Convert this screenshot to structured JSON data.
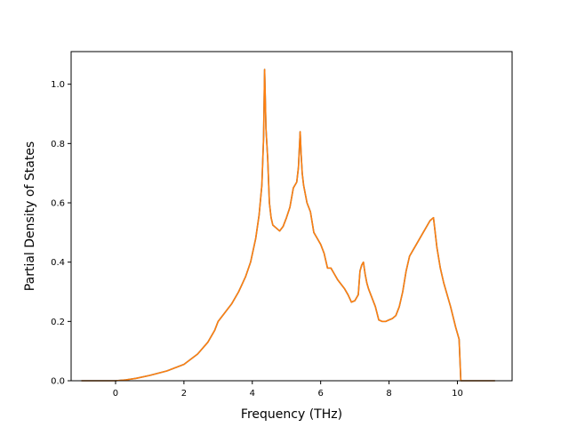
{
  "chart_data": {
    "type": "line",
    "title": "",
    "xlabel": "Frequency (THz)",
    "ylabel": "Partial Density of States",
    "xlim": [
      -1.3,
      11.6
    ],
    "ylim": [
      0.0,
      1.11
    ],
    "xticks": [
      0,
      2,
      4,
      6,
      8,
      10
    ],
    "yticks": [
      0.0,
      0.2,
      0.4,
      0.6,
      0.8,
      1.0
    ],
    "xtick_labels": [
      "0",
      "2",
      "4",
      "6",
      "8",
      "10"
    ],
    "ytick_labels": [
      "0.0",
      "0.2",
      "0.4",
      "0.6",
      "0.8",
      "1.0"
    ],
    "grid": false,
    "series": [
      {
        "color": "#1f77b4",
        "x": [
          -1.0,
          0.0,
          0.3,
          0.6,
          1.0,
          1.5,
          2.0,
          2.4,
          2.7,
          2.9,
          3.0,
          3.2,
          3.4,
          3.6,
          3.8,
          3.95,
          4.1,
          4.2,
          4.28,
          4.33,
          4.36,
          4.4,
          4.45,
          4.5,
          4.55,
          4.6,
          4.7,
          4.8,
          4.9,
          5.0,
          5.1,
          5.2,
          5.25,
          5.3,
          5.35,
          5.4,
          5.43,
          5.46,
          5.5,
          5.55,
          5.6,
          5.7,
          5.8,
          5.9,
          6.0,
          6.1,
          6.2,
          6.3,
          6.4,
          6.5,
          6.6,
          6.7,
          6.8,
          6.9,
          7.0,
          7.1,
          7.15,
          7.2,
          7.25,
          7.3,
          7.35,
          7.4,
          7.5,
          7.6,
          7.7,
          7.8,
          7.9,
          8.0,
          8.1,
          8.2,
          8.3,
          8.4,
          8.5,
          8.6,
          8.7,
          8.8,
          9.0,
          9.2,
          9.3,
          9.4,
          9.5,
          9.6,
          9.8,
          9.95,
          10.05,
          10.1,
          10.5,
          11.1
        ],
        "y": [
          0.0,
          0.0,
          0.003,
          0.008,
          0.018,
          0.033,
          0.055,
          0.09,
          0.13,
          0.17,
          0.2,
          0.23,
          0.26,
          0.3,
          0.35,
          0.4,
          0.48,
          0.56,
          0.66,
          0.82,
          1.05,
          0.85,
          0.75,
          0.6,
          0.55,
          0.525,
          0.515,
          0.505,
          0.52,
          0.55,
          0.585,
          0.65,
          0.66,
          0.67,
          0.72,
          0.84,
          0.76,
          0.7,
          0.66,
          0.63,
          0.6,
          0.57,
          0.5,
          0.48,
          0.46,
          0.43,
          0.38,
          0.38,
          0.36,
          0.34,
          0.325,
          0.31,
          0.29,
          0.265,
          0.27,
          0.29,
          0.37,
          0.39,
          0.4,
          0.36,
          0.33,
          0.31,
          0.28,
          0.25,
          0.205,
          0.2,
          0.2,
          0.205,
          0.21,
          0.22,
          0.25,
          0.3,
          0.37,
          0.42,
          0.44,
          0.46,
          0.5,
          0.54,
          0.55,
          0.45,
          0.38,
          0.33,
          0.25,
          0.18,
          0.14,
          0.0,
          0.0,
          0.0
        ]
      },
      {
        "color": "#ff7f0e",
        "x": [
          -1.0,
          0.0,
          0.3,
          0.6,
          1.0,
          1.5,
          2.0,
          2.4,
          2.7,
          2.9,
          3.0,
          3.2,
          3.4,
          3.6,
          3.8,
          3.95,
          4.1,
          4.2,
          4.28,
          4.33,
          4.36,
          4.4,
          4.45,
          4.5,
          4.55,
          4.6,
          4.7,
          4.8,
          4.9,
          5.0,
          5.1,
          5.2,
          5.25,
          5.3,
          5.35,
          5.4,
          5.43,
          5.46,
          5.5,
          5.55,
          5.6,
          5.7,
          5.8,
          5.9,
          6.0,
          6.1,
          6.2,
          6.3,
          6.4,
          6.5,
          6.6,
          6.7,
          6.8,
          6.9,
          7.0,
          7.1,
          7.15,
          7.2,
          7.25,
          7.3,
          7.35,
          7.4,
          7.5,
          7.6,
          7.7,
          7.8,
          7.9,
          8.0,
          8.1,
          8.2,
          8.3,
          8.4,
          8.5,
          8.6,
          8.7,
          8.8,
          9.0,
          9.2,
          9.3,
          9.4,
          9.5,
          9.6,
          9.8,
          9.95,
          10.05,
          10.1,
          10.5,
          11.1
        ],
        "y": [
          0.0,
          0.0,
          0.003,
          0.008,
          0.018,
          0.033,
          0.055,
          0.09,
          0.13,
          0.17,
          0.2,
          0.23,
          0.26,
          0.3,
          0.35,
          0.4,
          0.48,
          0.56,
          0.66,
          0.82,
          1.05,
          0.85,
          0.75,
          0.6,
          0.55,
          0.525,
          0.515,
          0.505,
          0.52,
          0.55,
          0.585,
          0.65,
          0.66,
          0.67,
          0.72,
          0.84,
          0.76,
          0.7,
          0.66,
          0.63,
          0.6,
          0.57,
          0.5,
          0.48,
          0.46,
          0.43,
          0.38,
          0.38,
          0.36,
          0.34,
          0.325,
          0.31,
          0.29,
          0.265,
          0.27,
          0.29,
          0.37,
          0.39,
          0.4,
          0.36,
          0.33,
          0.31,
          0.28,
          0.25,
          0.205,
          0.2,
          0.2,
          0.205,
          0.21,
          0.22,
          0.25,
          0.3,
          0.37,
          0.42,
          0.44,
          0.46,
          0.5,
          0.54,
          0.55,
          0.45,
          0.38,
          0.33,
          0.25,
          0.18,
          0.14,
          0.0,
          0.0,
          0.0
        ]
      }
    ]
  }
}
